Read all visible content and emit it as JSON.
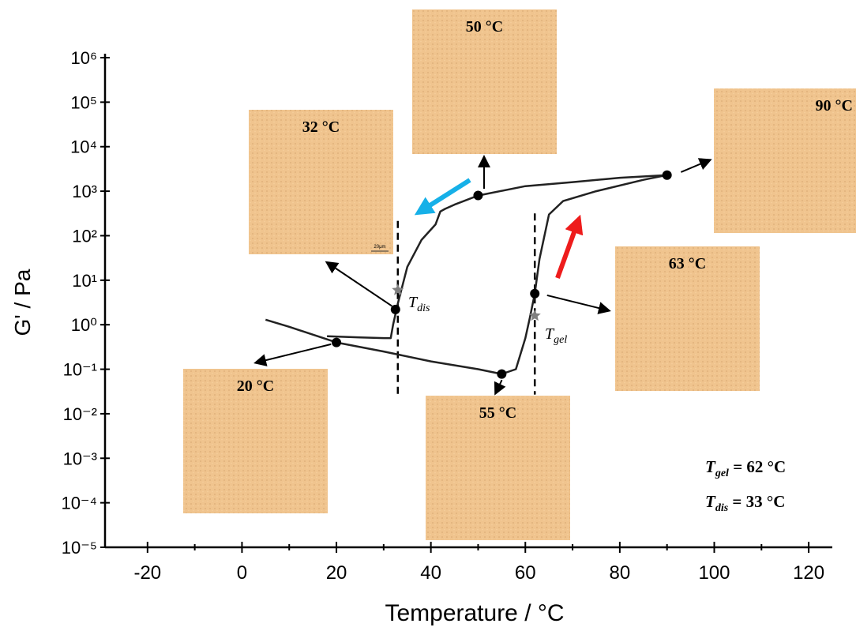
{
  "chart_data": {
    "type": "line",
    "xlabel": "Temperature / °C",
    "ylabel": "G' / Pa",
    "xlim": [
      -29,
      125
    ],
    "xticks": [
      -20,
      0,
      20,
      40,
      60,
      80,
      100,
      120
    ],
    "xminorticks": [
      -10,
      10,
      30,
      50,
      70,
      90,
      110
    ],
    "ylim": [
      1e-05,
      1000000
    ],
    "ylog": true,
    "yticks": [
      {
        "value": 1e-05,
        "label": "10⁻⁵"
      },
      {
        "value": 0.0001,
        "label": "10⁻⁴"
      },
      {
        "value": 0.001,
        "label": "10⁻³"
      },
      {
        "value": 0.01,
        "label": "10⁻²"
      },
      {
        "value": 0.1,
        "label": "10⁻¹"
      },
      {
        "value": 1,
        "label": "10⁰"
      },
      {
        "value": 10,
        "label": "10¹"
      },
      {
        "value": 100,
        "label": "10²"
      },
      {
        "value": 1000,
        "label": "10³"
      },
      {
        "value": 10000,
        "label": "10⁴"
      },
      {
        "value": 100000,
        "label": "10⁵"
      },
      {
        "value": 1000000,
        "label": "10⁶"
      }
    ],
    "series": [
      {
        "color": "#222222",
        "x": [
          5,
          10,
          15,
          20,
          30,
          40,
          50,
          55,
          58,
          60,
          61,
          62,
          63,
          65,
          68,
          75,
          85,
          90
        ],
        "values": [
          1.3,
          0.9,
          0.6,
          0.4,
          0.25,
          0.15,
          0.1,
          0.078,
          0.1,
          0.5,
          1.5,
          5,
          30,
          300,
          600,
          1000,
          1800,
          2300
        ]
      },
      {
        "color": "#222222",
        "x": [
          90,
          80,
          70,
          60,
          50,
          45,
          43,
          42,
          41,
          38,
          35,
          33,
          32,
          31.5,
          30,
          25,
          18
        ],
        "values": [
          2300,
          2000,
          1600,
          1300,
          800,
          500,
          400,
          350,
          180,
          80,
          20,
          3,
          1,
          0.5,
          0.5,
          0.52,
          0.55
        ]
      }
    ],
    "points": {
      "color": "#000000",
      "x": [
        20,
        32.5,
        50,
        55,
        62,
        90
      ],
      "values": [
        0.4,
        2.2,
        800,
        0.078,
        5,
        2300
      ]
    },
    "stars": {
      "color": "#808080",
      "x": [
        33,
        62
      ],
      "values": [
        6,
        1.6
      ],
      "labels": [
        {
          "symbol": "T",
          "subscript": "dis"
        },
        {
          "symbol": "T",
          "subscript": "gel"
        }
      ]
    },
    "guides": [
      {
        "x": 33,
        "y": [
          215,
          0.022
        ]
      },
      {
        "x": 62,
        "y": [
          316,
          0.027
        ]
      }
    ],
    "insets": [
      {
        "label": "50 °C"
      },
      {
        "label": "32 °C",
        "scale_bar": "20μm"
      },
      {
        "label": "90 °C"
      },
      {
        "label": "63 °C"
      },
      {
        "label": "20 °C"
      },
      {
        "label": "55 °C"
      }
    ],
    "annotations": [
      {
        "symbol": "T",
        "subscript": "gel",
        "text": " = 62 °C"
      },
      {
        "symbol": "T",
        "subscript": "dis",
        "text": " = 33 °C"
      }
    ]
  }
}
